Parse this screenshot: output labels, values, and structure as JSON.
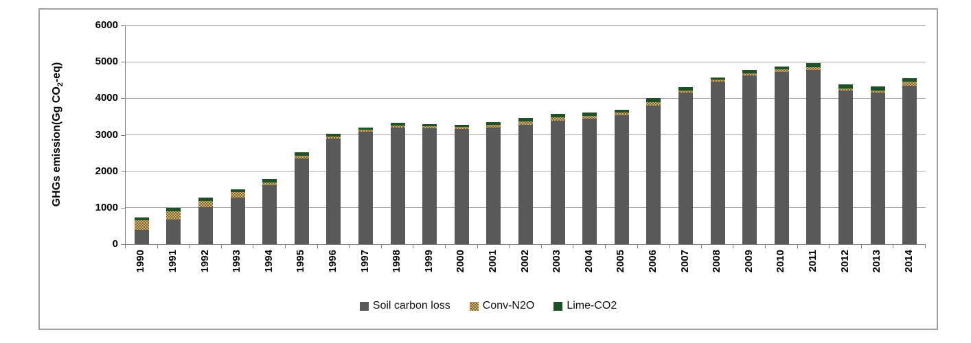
{
  "chart_data": {
    "type": "bar",
    "stacked": true,
    "title": "",
    "ylabel_prefix": "GHGs emission(Gg CO",
    "ylabel_subscript": "2",
    "ylabel_suffix": "-eq)",
    "ylim": [
      0,
      6000
    ],
    "ytick_interval": 1000,
    "yticks": [
      0,
      1000,
      2000,
      3000,
      4000,
      5000,
      6000
    ],
    "grid": true,
    "legend_position": "bottom",
    "categories": [
      "1990",
      "1991",
      "1992",
      "1993",
      "1994",
      "1995",
      "1996",
      "1997",
      "1998",
      "1999",
      "2000",
      "2001",
      "2002",
      "2003",
      "2004",
      "2005",
      "2006",
      "2007",
      "2008",
      "2009",
      "2010",
      "2011",
      "2012",
      "2013",
      "2014"
    ],
    "series": [
      {
        "name": "Soil carbon loss",
        "color": "#595959",
        "pattern": "solid",
        "values": [
          400,
          680,
          1010,
          1270,
          1610,
          2350,
          2890,
          3080,
          3200,
          3170,
          3160,
          3200,
          3270,
          3390,
          3440,
          3530,
          3800,
          4150,
          4450,
          4620,
          4730,
          4770,
          4210,
          4150,
          4350
        ]
      },
      {
        "name": "Conv-N2O",
        "color": "#cbb781",
        "pattern": "dotted",
        "pattern_dot_color": "#7d5a1d",
        "values": [
          250,
          220,
          180,
          160,
          90,
          80,
          60,
          60,
          60,
          60,
          55,
          65,
          90,
          90,
          85,
          80,
          90,
          70,
          60,
          70,
          60,
          80,
          60,
          60,
          100
        ]
      },
      {
        "name": "Lime-CO2",
        "color": "#1e5128",
        "pattern": "solid",
        "values": [
          80,
          90,
          80,
          70,
          80,
          90,
          70,
          60,
          70,
          70,
          65,
          85,
          110,
          90,
          85,
          80,
          110,
          80,
          70,
          90,
          90,
          110,
          110,
          110,
          110
        ]
      }
    ]
  },
  "colors": {
    "bar_gray": "#595959",
    "conv_tan": "#cbb781",
    "conv_dot": "#7d5a1d",
    "lime_green": "#1e5128",
    "gridline": "#a6a6a6",
    "axis": "#7f7f7f",
    "frame_border": "#a0a0a0",
    "text": "#000000"
  }
}
